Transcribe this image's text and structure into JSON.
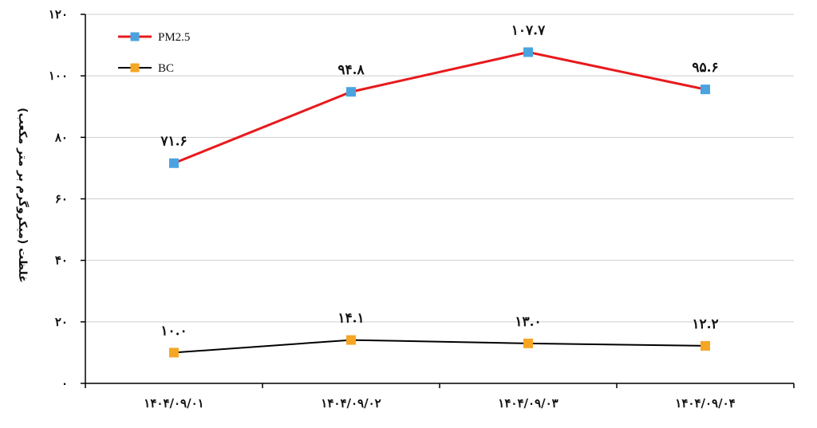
{
  "chart_data": {
    "type": "line",
    "title": "",
    "xlabel": "",
    "ylabel": "غلظت (میکروگرم بر متر مکعب)",
    "ylim": [
      0,
      120
    ],
    "y_ticks": [
      0,
      20,
      40,
      60,
      80,
      100,
      120
    ],
    "y_tick_labels": [
      "۰",
      "۲۰",
      "۴۰",
      "۶۰",
      "۸۰",
      "۱۰۰",
      "۱۲۰"
    ],
    "categories": [
      "۱۴۰۴/۰۹/۰۱",
      "۱۴۰۴/۰۹/۰۲",
      "۱۴۰۴/۰۹/۰۳",
      "۱۴۰۴/۰۹/۰۴"
    ],
    "grid": true,
    "legend_position": "top-left",
    "series": [
      {
        "name": "PM2.5",
        "values": [
          71.6,
          94.8,
          107.7,
          95.6
        ],
        "labels": [
          "۷۱.۶",
          "۹۴.۸",
          "۱۰۷.۷",
          "۹۵.۶"
        ],
        "line_color": "#e8191c",
        "marker_color": "#4aa3df"
      },
      {
        "name": "BC",
        "values": [
          10.0,
          14.1,
          13.0,
          12.2
        ],
        "labels": [
          "۱۰.۰",
          "۱۴.۱",
          "۱۳.۰",
          "۱۲.۲"
        ],
        "line_color": "#000000",
        "marker_color": "#f5a623"
      }
    ]
  }
}
